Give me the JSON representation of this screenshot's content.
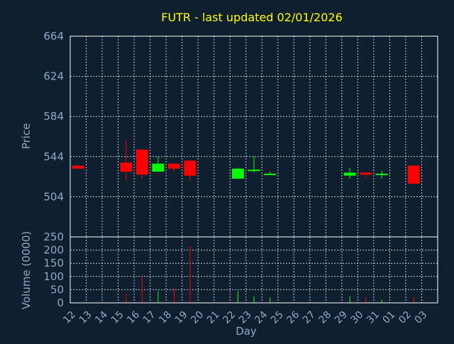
{
  "chart_data": {
    "type": "candlestick",
    "title": "FUTR - last updated 02/01/2026",
    "price_axis": {
      "label": "Price",
      "ticks": [
        504,
        544,
        584,
        624,
        664
      ],
      "ylim": [
        464,
        664
      ]
    },
    "volume_axis": {
      "label": "Volume (0000)",
      "ticks": [
        0,
        50,
        100,
        150,
        200,
        250
      ],
      "ylim": [
        0,
        250
      ]
    },
    "x_axis": {
      "label": "Day",
      "tick_labels": [
        "12",
        "13",
        "14",
        "15",
        "16",
        "17",
        "18",
        "19",
        "20",
        "21",
        "22",
        "23",
        "24",
        "25",
        "26",
        "27",
        "28",
        "29",
        "30",
        "31",
        "01",
        "02",
        "03"
      ]
    },
    "grid": true,
    "colors": {
      "background": "#0f1f2f",
      "up": "#00ff00",
      "down": "#ff0000",
      "title": "#ffff00",
      "axis_text": "#8fa8c8",
      "grid": "#ffffff"
    },
    "candles": [
      {
        "day": "12",
        "open": 535,
        "high": 535,
        "low": 532,
        "close": 532
      },
      {
        "day": "15",
        "open": 538,
        "high": 560,
        "low": 520,
        "close": 529,
        "volume": 35
      },
      {
        "day": "16",
        "open": 551,
        "high": 551,
        "low": 522,
        "close": 526,
        "volume": 100
      },
      {
        "day": "17",
        "open": 529,
        "high": 544,
        "low": 529,
        "close": 537,
        "volume": 45
      },
      {
        "day": "18",
        "open": 537,
        "high": 537,
        "low": 529,
        "close": 532,
        "volume": 55
      },
      {
        "day": "19",
        "open": 540,
        "high": 540,
        "low": 520,
        "close": 525,
        "volume": 215
      },
      {
        "day": "22",
        "open": 522,
        "high": 533,
        "low": 522,
        "close": 532,
        "volume": 45
      },
      {
        "day": "23",
        "open": 530,
        "high": 544,
        "low": 528,
        "close": 531,
        "volume": 25
      },
      {
        "day": "24",
        "open": 526,
        "high": 529,
        "low": 526,
        "close": 527,
        "volume": 20
      },
      {
        "day": "29",
        "open": 525,
        "high": 533,
        "low": 522,
        "close": 528,
        "volume": 25
      },
      {
        "day": "30",
        "open": 528,
        "high": 528,
        "low": 523,
        "close": 526,
        "volume": 22
      },
      {
        "day": "31",
        "open": 526,
        "high": 530,
        "low": 522,
        "close": 527,
        "volume": 12
      },
      {
        "day": "02",
        "open": 535,
        "high": 535,
        "low": 517,
        "close": 517,
        "volume": 22
      }
    ]
  }
}
